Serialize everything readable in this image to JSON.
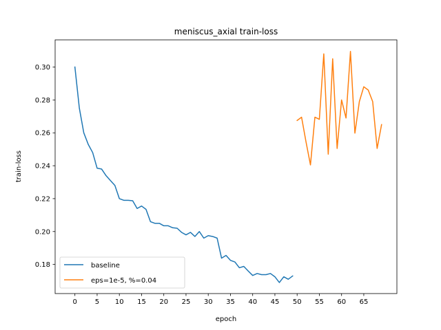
{
  "chart_data": {
    "type": "line",
    "title": "meniscus_axial train-loss",
    "xlabel": "epoch",
    "ylabel": "train-loss",
    "xlim": [
      -4.45,
      72.45
    ],
    "ylim": [
      0.1623,
      0.3165
    ],
    "xticks": [
      0,
      5,
      10,
      15,
      20,
      25,
      30,
      35,
      40,
      45,
      50,
      55,
      60,
      65
    ],
    "yticks": [
      0.18,
      0.2,
      0.22,
      0.24,
      0.26,
      0.28,
      0.3
    ],
    "ytick_labels": [
      "0.18",
      "0.20",
      "0.22",
      "0.24",
      "0.26",
      "0.28",
      "0.30"
    ],
    "grid": false,
    "legend_position": "lower-left",
    "series": [
      {
        "name": "baseline",
        "color": "#1f77b4",
        "x": [
          0,
          1,
          2,
          3,
          4,
          5,
          6,
          7,
          8,
          9,
          10,
          11,
          12,
          13,
          14,
          15,
          16,
          17,
          18,
          19,
          20,
          21,
          22,
          23,
          24,
          25,
          26,
          27,
          28,
          29,
          30,
          31,
          32,
          33,
          34,
          35,
          36,
          37,
          38,
          39,
          40,
          41,
          42,
          43,
          44,
          45,
          46,
          47,
          48,
          49
        ],
        "y": [
          0.3,
          0.275,
          0.26,
          0.253,
          0.248,
          0.2385,
          0.238,
          0.234,
          0.231,
          0.228,
          0.22,
          0.219,
          0.219,
          0.2187,
          0.214,
          0.2155,
          0.2135,
          0.206,
          0.205,
          0.205,
          0.2035,
          0.2035,
          0.2023,
          0.202,
          0.1995,
          0.198,
          0.1995,
          0.197,
          0.2,
          0.196,
          0.1975,
          0.197,
          0.196,
          0.1838,
          0.1855,
          0.1825,
          0.1815,
          0.178,
          0.1788,
          0.176,
          0.1733,
          0.1745,
          0.1738,
          0.1738,
          0.1745,
          0.1725,
          0.169,
          0.1725,
          0.171,
          0.173
        ]
      },
      {
        "name": "eps=1e-5, %=0.04",
        "color": "#ff7f0e",
        "x": [
          50,
          51,
          52,
          53,
          54,
          55,
          56,
          57,
          58,
          59,
          60,
          61,
          62,
          63,
          64,
          65,
          66,
          67,
          68,
          69
        ],
        "y": [
          0.2675,
          0.2695,
          0.2545,
          0.2405,
          0.2695,
          0.2682,
          0.308,
          0.247,
          0.305,
          0.2505,
          0.28,
          0.269,
          0.3095,
          0.2598,
          0.279,
          0.288,
          0.286,
          0.279,
          0.2505,
          0.265
        ]
      }
    ]
  }
}
